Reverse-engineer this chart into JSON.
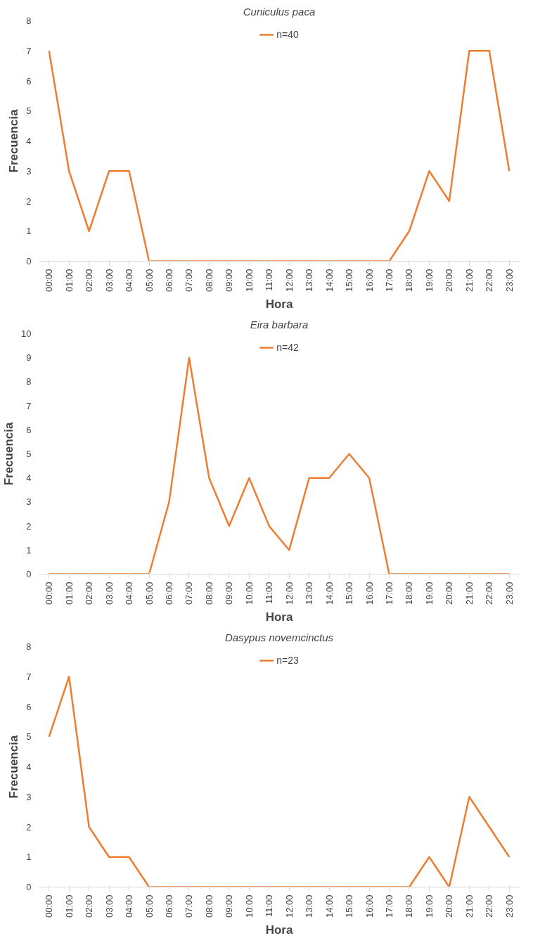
{
  "chart_data": [
    {
      "type": "line",
      "title": "Cuniculus paca",
      "xlabel": "Hora",
      "ylabel": "Frecuencia",
      "categories": [
        "00:00",
        "01:00",
        "02:00",
        "03:00",
        "04:00",
        "05:00",
        "06:00",
        "07:00",
        "08:00",
        "09:00",
        "10:00",
        "11:00",
        "12:00",
        "13:00",
        "14:00",
        "15:00",
        "16:00",
        "17:00",
        "18:00",
        "19:00",
        "20:00",
        "21:00",
        "22:00",
        "23:00"
      ],
      "series": [
        {
          "name": "n=40",
          "color": "#ed7d31",
          "values": [
            7,
            3,
            1,
            3,
            3,
            0,
            0,
            0,
            0,
            0,
            0,
            0,
            0,
            0,
            0,
            0,
            0,
            0,
            1,
            3,
            2,
            7,
            7,
            3
          ]
        }
      ],
      "ylim": [
        0,
        8
      ],
      "yticks": [
        0,
        1,
        2,
        3,
        4,
        5,
        6,
        7,
        8
      ],
      "grid": false,
      "legend": "top",
      "marker": "none",
      "line_style": "solid"
    },
    {
      "type": "line",
      "title": "Eira barbara",
      "xlabel": "Hora",
      "ylabel": "Frecuencia",
      "categories": [
        "00:00",
        "01:00",
        "02:00",
        "03:00",
        "04:00",
        "05:00",
        "06:00",
        "07:00",
        "08:00",
        "09:00",
        "10:00",
        "11:00",
        "12:00",
        "13:00",
        "14:00",
        "15:00",
        "16:00",
        "17:00",
        "18:00",
        "19:00",
        "20:00",
        "21:00",
        "22:00",
        "23:00"
      ],
      "series": [
        {
          "name": "n=42",
          "color": "#ed7d31",
          "values": [
            0,
            0,
            0,
            0,
            0,
            0,
            3,
            9,
            4,
            2,
            4,
            2,
            1,
            4,
            4,
            5,
            4,
            0,
            0,
            0,
            0,
            0,
            0,
            0
          ]
        }
      ],
      "ylim": [
        0,
        10
      ],
      "yticks": [
        0,
        1,
        2,
        3,
        4,
        5,
        6,
        7,
        8,
        9,
        10
      ],
      "grid": false,
      "legend": "top",
      "marker": "none",
      "line_style": "solid"
    },
    {
      "type": "line",
      "title": "Dasypus novemcinctus",
      "xlabel": "Hora",
      "ylabel": "Frecuencia",
      "categories": [
        "00:00",
        "01:00",
        "02:00",
        "03:00",
        "04:00",
        "05:00",
        "06:00",
        "07:00",
        "08:00",
        "09:00",
        "10:00",
        "11:00",
        "12:00",
        "13:00",
        "14:00",
        "15:00",
        "16:00",
        "17:00",
        "18:00",
        "19:00",
        "20:00",
        "21:00",
        "22:00",
        "23:00"
      ],
      "series": [
        {
          "name": "n=23",
          "color": "#ed7d31",
          "values": [
            5,
            7,
            2,
            1,
            1,
            0,
            0,
            0,
            0,
            0,
            0,
            0,
            0,
            0,
            0,
            0,
            0,
            0,
            0,
            1,
            0,
            3,
            2,
            1
          ]
        }
      ],
      "ylim": [
        0,
        8
      ],
      "yticks": [
        0,
        1,
        2,
        3,
        4,
        5,
        6,
        7,
        8
      ],
      "grid": false,
      "legend": "top",
      "marker": "none",
      "line_style": "solid"
    }
  ]
}
